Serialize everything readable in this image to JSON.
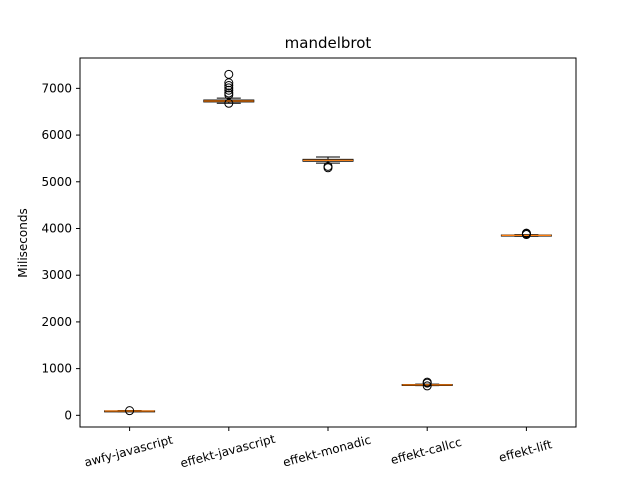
{
  "chart_data": {
    "type": "box",
    "title": "mandelbrot",
    "xlabel": "",
    "ylabel": "Miliseconds",
    "ylim": [
      -250,
      7650
    ],
    "yticks": [
      0,
      1000,
      2000,
      3000,
      4000,
      5000,
      6000,
      7000
    ],
    "ytick_labels": [
      "0",
      "1000",
      "2000",
      "3000",
      "4000",
      "5000",
      "6000",
      "7000"
    ],
    "categories": [
      "awfy-javascript",
      "effekt-javascript",
      "effekt-monadic",
      "effekt-callcc",
      "effekt-lift"
    ],
    "boxes": [
      {
        "category": "awfy-javascript",
        "whisker_low": 80,
        "q1": 88,
        "median": 92,
        "q3": 96,
        "whisker_high": 104,
        "fliers": [
          100
        ]
      },
      {
        "category": "effekt-javascript",
        "whisker_low": 6680,
        "q1": 6710,
        "median": 6730,
        "q3": 6750,
        "whisker_high": 6790,
        "fliers": [
          6680,
          6860,
          6900,
          6960,
          7010,
          7060,
          7120,
          7300
        ]
      },
      {
        "category": "effekt-monadic",
        "whisker_low": 5400,
        "q1": 5440,
        "median": 5460,
        "q3": 5480,
        "whisker_high": 5530,
        "fliers": [
          5300,
          5330
        ]
      },
      {
        "category": "effekt-callcc",
        "whisker_low": 635,
        "q1": 645,
        "median": 652,
        "q3": 660,
        "whisker_high": 668,
        "fliers": [
          630,
          690,
          710
        ]
      },
      {
        "category": "effekt-lift",
        "whisker_low": 3835,
        "q1": 3845,
        "median": 3852,
        "q3": 3860,
        "whisker_high": 3868,
        "fliers": [
          3870,
          3890,
          3900
        ]
      }
    ],
    "box_color": "#000000",
    "median_color": "#ff7f0e",
    "grid": false,
    "legend": "none"
  }
}
